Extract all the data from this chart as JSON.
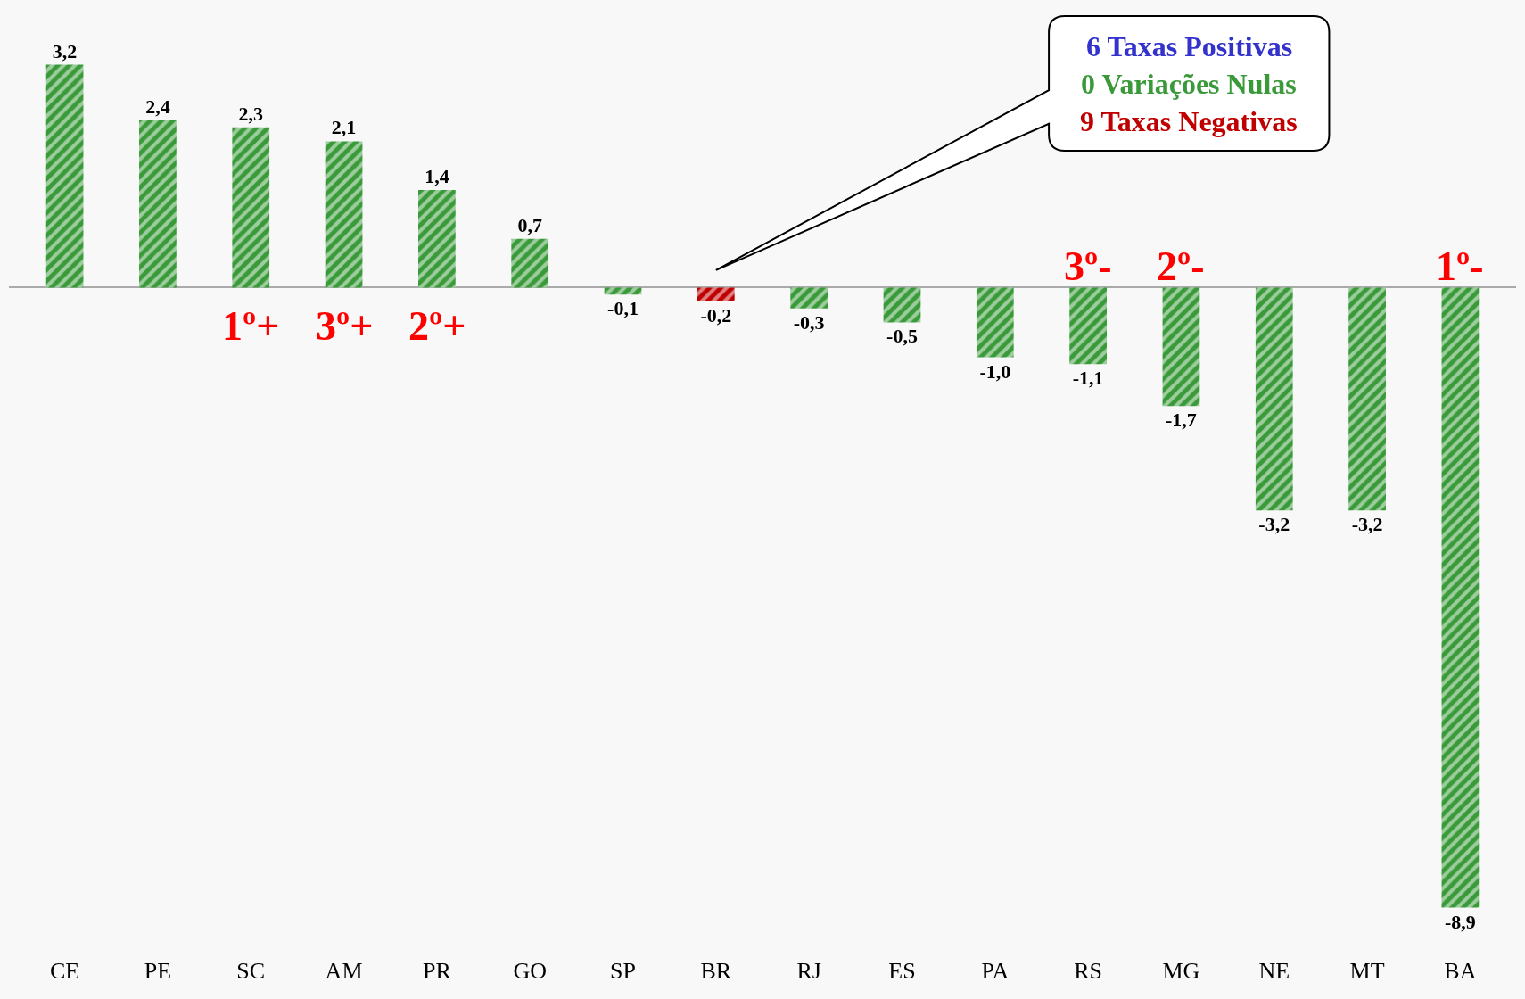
{
  "chart_data": {
    "type": "bar",
    "categories": [
      "CE",
      "PE",
      "SC",
      "AM",
      "PR",
      "GO",
      "SP",
      "BR",
      "RJ",
      "ES",
      "PA",
      "RS",
      "MG",
      "NE",
      "MT",
      "BA"
    ],
    "values": [
      3.2,
      2.4,
      2.3,
      2.1,
      1.4,
      0.7,
      -0.1,
      -0.2,
      -0.3,
      -0.5,
      -1.0,
      -1.1,
      -1.7,
      -3.2,
      -3.2,
      -8.9
    ],
    "value_labels": [
      "3,2",
      "2,4",
      "2,3",
      "2,1",
      "1,4",
      "0,7",
      "-0,1",
      "-0,2",
      "-0,3",
      "-0,5",
      "-1,0",
      "-1,1",
      "-1,7",
      "-3,2",
      "-3,2",
      "-8,9"
    ],
    "colors": [
      "#3a9a3a",
      "#3a9a3a",
      "#3a9a3a",
      "#3a9a3a",
      "#3a9a3a",
      "#3a9a3a",
      "#3a9a3a",
      "#c00000",
      "#3a9a3a",
      "#3a9a3a",
      "#3a9a3a",
      "#3a9a3a",
      "#3a9a3a",
      "#3a9a3a",
      "#3a9a3a",
      "#3a9a3a"
    ],
    "grid": false,
    "tick_labels": "x",
    "annotations": [
      "6 Taxas Positivas",
      "0 Variações Nulas",
      "9 Taxas Negativas",
      "1º+",
      "3º+",
      "2º+",
      "3º-",
      "2º-",
      "1º-"
    ]
  }
}
